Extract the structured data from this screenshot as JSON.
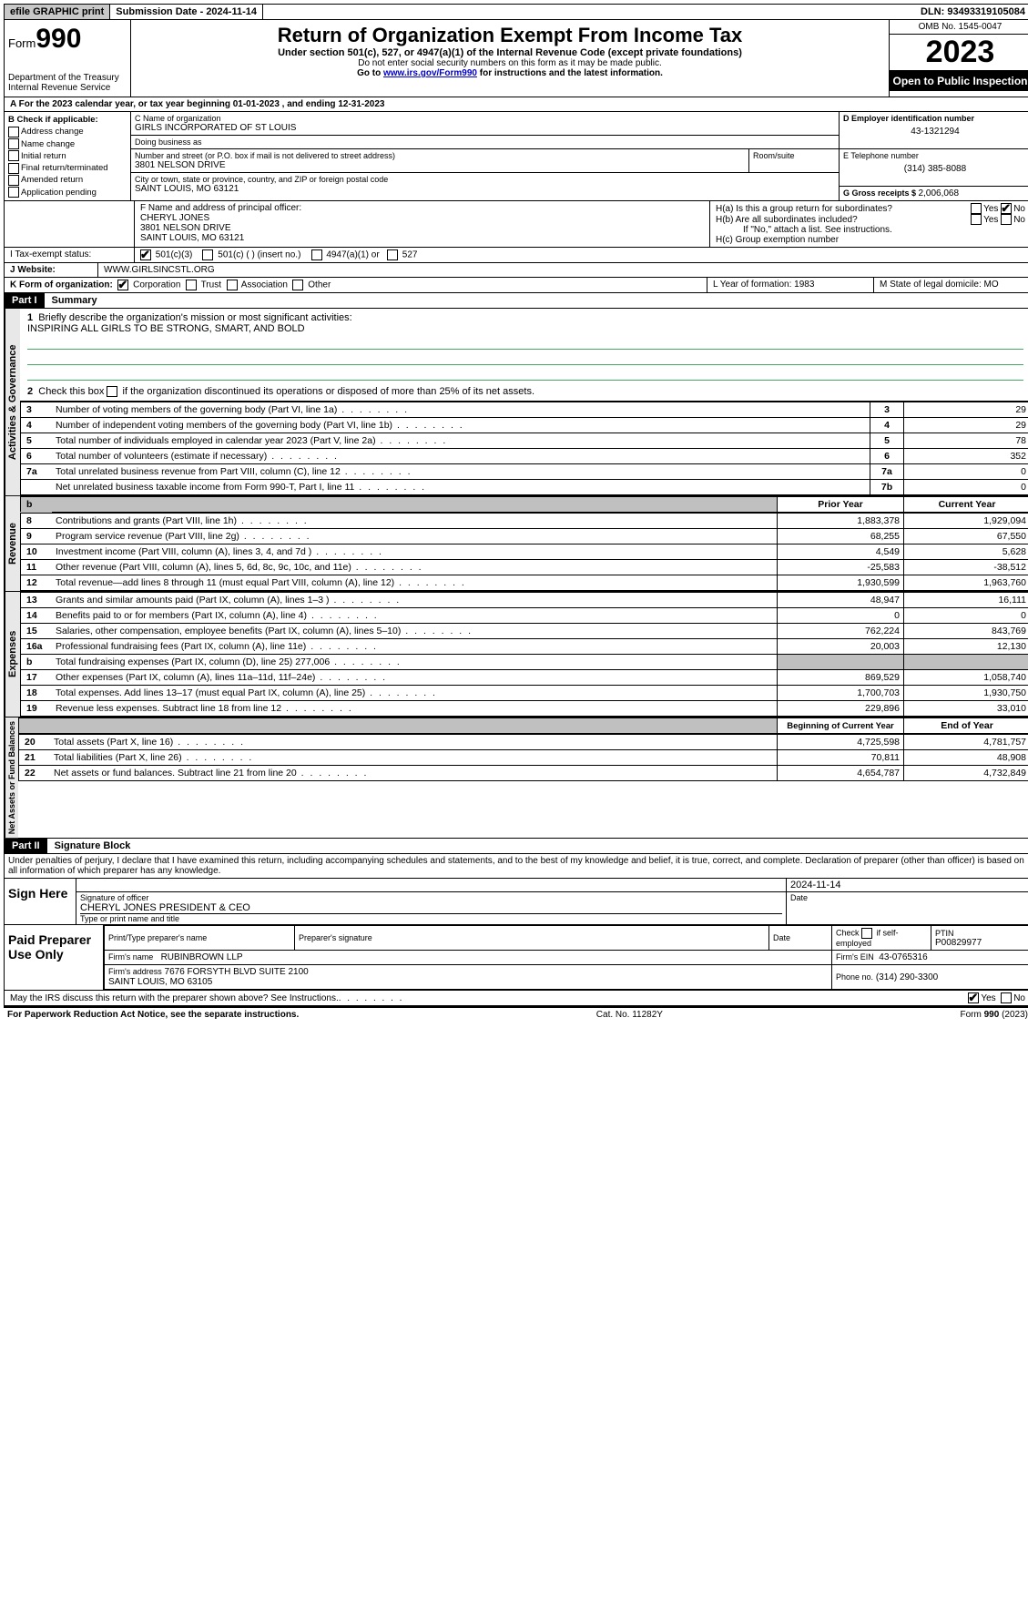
{
  "topbar": {
    "efile": "efile GRAPHIC print",
    "submission": "Submission Date - 2024-11-14",
    "dln": "DLN: 93493319105084"
  },
  "header": {
    "form_label": "Form",
    "form_no": "990",
    "dept": "Department of the Treasury\nInternal Revenue Service",
    "title": "Return of Organization Exempt From Income Tax",
    "sub1": "Under section 501(c), 527, or 4947(a)(1) of the Internal Revenue Code (except private foundations)",
    "sub2": "Do not enter social security numbers on this form as it may be made public.",
    "sub3_pre": "Go to ",
    "sub3_link": "www.irs.gov/Form990",
    "sub3_post": " for instructions and the latest information.",
    "omb": "OMB No. 1545-0047",
    "year": "2023",
    "open": "Open to Public Inspection"
  },
  "row_a": "A For the 2023 calendar year, or tax year beginning 01-01-2023   , and ending 12-31-2023",
  "col_b": {
    "head": "B Check if applicable:",
    "items": [
      "Address change",
      "Name change",
      "Initial return",
      "Final return/terminated",
      "Amended return",
      "Application pending"
    ]
  },
  "col_c": {
    "name_lab": "C Name of organization",
    "name": "GIRLS INCORPORATED OF ST LOUIS",
    "dba_lab": "Doing business as",
    "dba": "",
    "addr_lab": "Number and street (or P.O. box if mail is not delivered to street address)",
    "addr": "3801 NELSON DRIVE",
    "room_lab": "Room/suite",
    "city_lab": "City or town, state or province, country, and ZIP or foreign postal code",
    "city": "SAINT LOUIS, MO  63121"
  },
  "col_de": {
    "d_lab": "D Employer identification number",
    "d_val": "43-1321294",
    "e_lab": "E Telephone number",
    "e_val": "(314) 385-8088",
    "g_lab": "G Gross receipts $ ",
    "g_val": "2,006,068"
  },
  "fh": {
    "f_lab": "F  Name and address of principal officer:",
    "f_val": "CHERYL JONES\n3801 NELSON DRIVE\nSAINT LOUIS, MO  63121",
    "ha": "H(a)  Is this a group return for subordinates?",
    "hb": "H(b)  Are all subordinates included?",
    "hb_note": "If \"No,\" attach a list. See instructions.",
    "hc": "H(c)  Group exemption number",
    "yes": "Yes",
    "no": "No"
  },
  "tax_status": {
    "label": "I   Tax-exempt status:",
    "opts": [
      "501(c)(3)",
      "501(c) (  ) (insert no.)",
      "4947(a)(1) or",
      "527"
    ]
  },
  "website": {
    "label": "J   Website:",
    "val": "WWW.GIRLSINCSTL.ORG"
  },
  "k": {
    "label": "K Form of organization:",
    "opts": [
      "Corporation",
      "Trust",
      "Association",
      "Other"
    ],
    "l": "L Year of formation: 1983",
    "m": "M State of legal domicile: MO"
  },
  "part1": {
    "head": "Part I",
    "title": "Summary",
    "q1": "Briefly describe the organization's mission or most significant activities:",
    "mission": "INSPIRING ALL GIRLS TO BE STRONG, SMART, AND BOLD",
    "q2": "Check this box      if the organization discontinued its operations or disposed of more than 25% of its net assets.",
    "gov_label": "Activities & Governance",
    "rev_label": "Revenue",
    "exp_label": "Expenses",
    "net_label": "Net Assets or Fund Balances",
    "prior": "Prior Year",
    "current": "Current Year",
    "begin": "Beginning of Current Year",
    "end": "End of Year",
    "gov_rows": [
      {
        "n": "3",
        "d": "Number of voting members of the governing body (Part VI, line 1a)",
        "ln": "3",
        "v": "29"
      },
      {
        "n": "4",
        "d": "Number of independent voting members of the governing body (Part VI, line 1b)",
        "ln": "4",
        "v": "29"
      },
      {
        "n": "5",
        "d": "Total number of individuals employed in calendar year 2023 (Part V, line 2a)",
        "ln": "5",
        "v": "78"
      },
      {
        "n": "6",
        "d": "Total number of volunteers (estimate if necessary)",
        "ln": "6",
        "v": "352"
      },
      {
        "n": "7a",
        "d": "Total unrelated business revenue from Part VIII, column (C), line 12",
        "ln": "7a",
        "v": "0"
      },
      {
        "n": "",
        "d": "Net unrelated business taxable income from Form 990-T, Part I, line 11",
        "ln": "7b",
        "v": "0"
      }
    ],
    "rev_rows": [
      {
        "n": "8",
        "d": "Contributions and grants (Part VIII, line 1h)",
        "p": "1,883,378",
        "c": "1,929,094"
      },
      {
        "n": "9",
        "d": "Program service revenue (Part VIII, line 2g)",
        "p": "68,255",
        "c": "67,550"
      },
      {
        "n": "10",
        "d": "Investment income (Part VIII, column (A), lines 3, 4, and 7d )",
        "p": "4,549",
        "c": "5,628"
      },
      {
        "n": "11",
        "d": "Other revenue (Part VIII, column (A), lines 5, 6d, 8c, 9c, 10c, and 11e)",
        "p": "-25,583",
        "c": "-38,512"
      },
      {
        "n": "12",
        "d": "Total revenue—add lines 8 through 11 (must equal Part VIII, column (A), line 12)",
        "p": "1,930,599",
        "c": "1,963,760"
      }
    ],
    "exp_rows": [
      {
        "n": "13",
        "d": "Grants and similar amounts paid (Part IX, column (A), lines 1–3 )",
        "p": "48,947",
        "c": "16,111"
      },
      {
        "n": "14",
        "d": "Benefits paid to or for members (Part IX, column (A), line 4)",
        "p": "0",
        "c": "0"
      },
      {
        "n": "15",
        "d": "Salaries, other compensation, employee benefits (Part IX, column (A), lines 5–10)",
        "p": "762,224",
        "c": "843,769"
      },
      {
        "n": "16a",
        "d": "Professional fundraising fees (Part IX, column (A), line 11e)",
        "p": "20,003",
        "c": "12,130"
      },
      {
        "n": "b",
        "d": "Total fundraising expenses (Part IX, column (D), line 25) 277,006",
        "p": "grey",
        "c": "grey"
      },
      {
        "n": "17",
        "d": "Other expenses (Part IX, column (A), lines 11a–11d, 11f–24e)",
        "p": "869,529",
        "c": "1,058,740"
      },
      {
        "n": "18",
        "d": "Total expenses. Add lines 13–17 (must equal Part IX, column (A), line 25)",
        "p": "1,700,703",
        "c": "1,930,750"
      },
      {
        "n": "19",
        "d": "Revenue less expenses. Subtract line 18 from line 12",
        "p": "229,896",
        "c": "33,010"
      }
    ],
    "net_rows": [
      {
        "n": "20",
        "d": "Total assets (Part X, line 16)",
        "p": "4,725,598",
        "c": "4,781,757"
      },
      {
        "n": "21",
        "d": "Total liabilities (Part X, line 26)",
        "p": "70,811",
        "c": "48,908"
      },
      {
        "n": "22",
        "d": "Net assets or fund balances. Subtract line 21 from line 20",
        "p": "4,654,787",
        "c": "4,732,849"
      }
    ]
  },
  "part2": {
    "head": "Part II",
    "title": "Signature Block",
    "decl": "Under penalties of perjury, I declare that I have examined this return, including accompanying schedules and statements, and to the best of my knowledge and belief, it is true, correct, and complete. Declaration of preparer (other than officer) is based on all information of which preparer has any knowledge.",
    "sign_here": "Sign Here",
    "sig_date": "2024-11-14",
    "sig_lab": "Signature of officer",
    "sig_name": "CHERYL JONES  PRESIDENT & CEO",
    "sig_name_lab": "Type or print name and title",
    "date_lab": "Date",
    "paid": "Paid Preparer Use Only",
    "prep_name_lab": "Print/Type preparer's name",
    "prep_sig_lab": "Preparer's signature",
    "check_lab": "Check       if self-employed",
    "ptin_lab": "PTIN",
    "ptin": "P00829977",
    "firm_name_lab": "Firm's name",
    "firm_name": "RUBINBROWN LLP",
    "firm_ein_lab": "Firm's EIN",
    "firm_ein": "43-0765316",
    "firm_addr_lab": "Firm's address",
    "firm_addr": "7676 FORSYTH BLVD SUITE 2100\nSAINT LOUIS, MO  63105",
    "phone_lab": "Phone no.",
    "phone": "(314) 290-3300",
    "discuss": "May the IRS discuss this return with the preparer shown above? See Instructions."
  },
  "footer": {
    "left": "For Paperwork Reduction Act Notice, see the separate instructions.",
    "mid": "Cat. No. 11282Y",
    "right": "Form 990 (2023)"
  }
}
